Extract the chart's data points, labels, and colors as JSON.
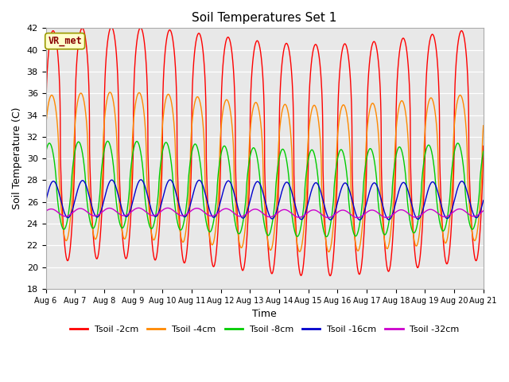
{
  "title": "Soil Temperatures Set 1",
  "xlabel": "Time",
  "ylabel": "Soil Temperature (C)",
  "ylim": [
    18,
    42
  ],
  "yticks": [
    18,
    20,
    22,
    24,
    26,
    28,
    30,
    32,
    34,
    36,
    38,
    40,
    42
  ],
  "x_tick_labels": [
    "Aug 6",
    "Aug 7",
    "Aug 8",
    "Aug 9",
    "Aug 10",
    "Aug 11",
    "Aug 12",
    "Aug 13",
    "Aug 14",
    "Aug 15",
    "Aug 16",
    "Aug 17",
    "Aug 18",
    "Aug 19",
    "Aug 20",
    "Aug 21"
  ],
  "annotation_text": "VR_met",
  "annotation_bg": "#ffffcc",
  "annotation_border": "#999900",
  "annotation_text_color": "#880000",
  "bg_color": "#e8e8e8",
  "legend_entries": [
    "Tsoil -2cm",
    "Tsoil -4cm",
    "Tsoil -8cm",
    "Tsoil -16cm",
    "Tsoil -32cm"
  ],
  "line_colors": [
    "#ff0000",
    "#ff8800",
    "#00cc00",
    "#0000cc",
    "#cc00cc"
  ],
  "num_days": 15,
  "figsize": [
    6.4,
    4.8
  ],
  "dpi": 100
}
